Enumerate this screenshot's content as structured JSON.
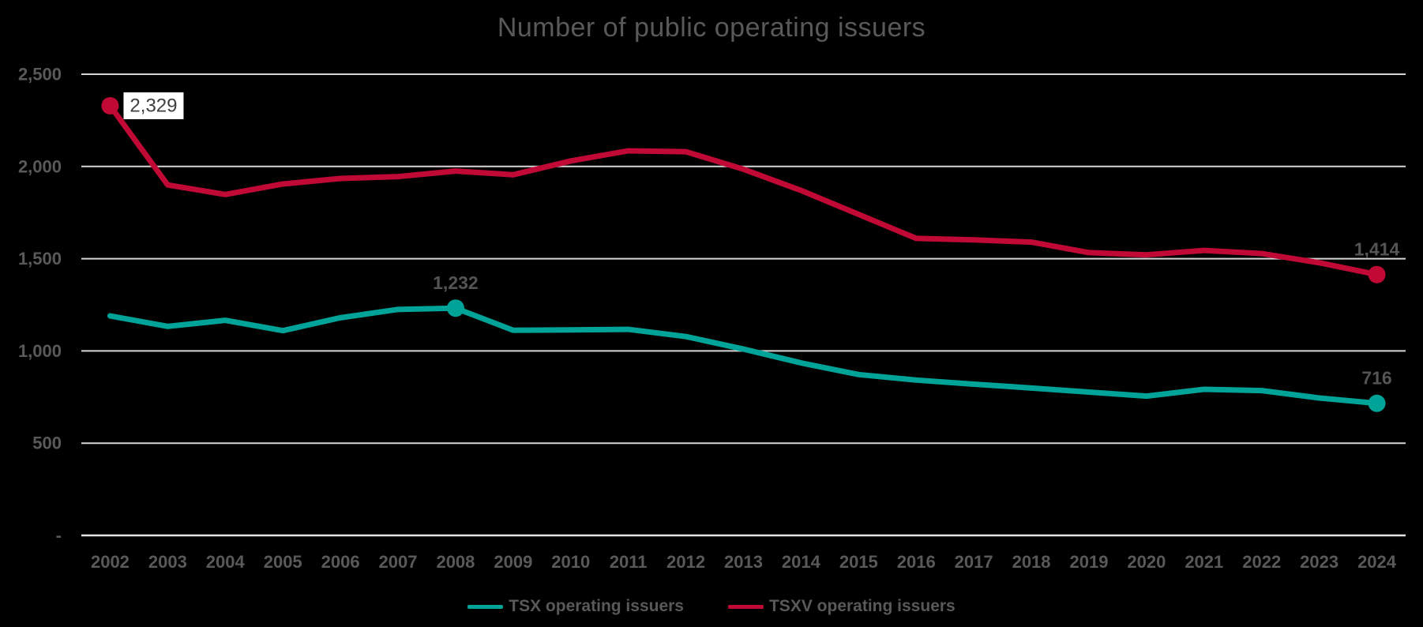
{
  "chart_data": {
    "type": "line",
    "title": "Number of public operating issuers",
    "categories": [
      "2002",
      "2003",
      "2004",
      "2005",
      "2006",
      "2007",
      "2008",
      "2009",
      "2010",
      "2011",
      "2012",
      "2013",
      "2014",
      "2015",
      "2016",
      "2017",
      "2018",
      "2019",
      "2020",
      "2021",
      "2022",
      "2023",
      "2024"
    ],
    "series": [
      {
        "name": "TSX operating issuers",
        "color": "#00A398",
        "values": [
          1190,
          1133,
          1166,
          1110,
          1180,
          1225,
          1232,
          1112,
          1114,
          1117,
          1078,
          1010,
          935,
          872,
          842,
          820,
          799,
          777,
          755,
          792,
          785,
          745,
          716
        ]
      },
      {
        "name": "TSXV operating issuers",
        "color": "#C00A35",
        "values": [
          2329,
          1900,
          1848,
          1905,
          1935,
          1945,
          1975,
          1955,
          2030,
          2085,
          2080,
          1985,
          1870,
          1740,
          1610,
          1602,
          1590,
          1533,
          1521,
          1545,
          1528,
          1478,
          1414
        ]
      }
    ],
    "ylim": [
      0,
      2500
    ],
    "y_ticks": [
      {
        "value": 2500,
        "label": "2,500"
      },
      {
        "value": 2000,
        "label": "2,000"
      },
      {
        "value": 1500,
        "label": "1,500"
      },
      {
        "value": 1000,
        "label": "1,000"
      },
      {
        "value": 500,
        "label": "500"
      },
      {
        "value": 0,
        "label": "-"
      }
    ],
    "grid": "horizontal",
    "legend_position": "bottom",
    "callouts": [
      {
        "series": 1,
        "category_index": 0,
        "label": "2,329",
        "boxed": true
      },
      {
        "series": 0,
        "category_index": 6,
        "label": "1,232",
        "boxed": false
      },
      {
        "series": 1,
        "category_index": 22,
        "label": "1,414",
        "boxed": false
      },
      {
        "series": 0,
        "category_index": 22,
        "label": "716",
        "boxed": false
      }
    ]
  },
  "legend": {
    "items": [
      {
        "label": "TSX operating issuers",
        "color": "#00A398"
      },
      {
        "label": "TSXV operating issuers",
        "color": "#C00A35"
      }
    ]
  },
  "colors": {
    "background": "#000000",
    "gridline": "#D6D6D6",
    "title_text": "#595959",
    "tick_text": "#595959",
    "callout_text": "#545454",
    "boxed_label_bg": "#FFFFFF",
    "boxed_label_text": "#3F3F3F",
    "tsx_teal": "#00A398",
    "tsxv_crimson": "#C00A35"
  }
}
